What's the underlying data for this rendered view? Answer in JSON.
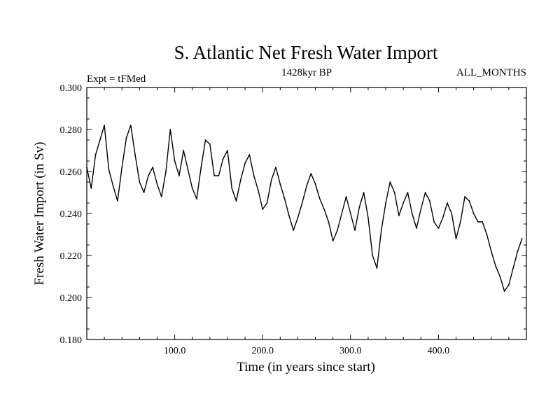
{
  "chart_data": {
    "type": "line",
    "title": "S. Atlantic Net Fresh Water Import",
    "subtitle_left": "Expt = tFMed",
    "subtitle_center": "1428kyr BP",
    "subtitle_right": "ALL_MONTHS",
    "xlabel": "Time (in years since start)",
    "ylabel": "Fresh Water Import (in Sv)",
    "xlim": [
      0,
      500
    ],
    "ylim": [
      0.18,
      0.3
    ],
    "x_ticks": [
      100,
      200,
      300,
      400
    ],
    "x_tick_labels": [
      "100.0",
      "200.0",
      "300.0",
      "400.0"
    ],
    "y_ticks": [
      0.18,
      0.2,
      0.22,
      0.24,
      0.26,
      0.28,
      0.3
    ],
    "y_tick_labels": [
      "0.180",
      "0.200",
      "0.220",
      "0.240",
      "0.260",
      "0.280",
      "0.300"
    ],
    "series": [
      {
        "name": "Fresh Water Import",
        "x_start": 0,
        "x_step": 5,
        "values": [
          0.262,
          0.252,
          0.268,
          0.275,
          0.282,
          0.261,
          0.253,
          0.246,
          0.262,
          0.276,
          0.282,
          0.268,
          0.255,
          0.25,
          0.258,
          0.262,
          0.254,
          0.248,
          0.26,
          0.28,
          0.265,
          0.258,
          0.27,
          0.261,
          0.252,
          0.247,
          0.262,
          0.275,
          0.273,
          0.258,
          0.258,
          0.266,
          0.27,
          0.252,
          0.246,
          0.256,
          0.264,
          0.268,
          0.258,
          0.251,
          0.242,
          0.245,
          0.256,
          0.262,
          0.254,
          0.247,
          0.239,
          0.232,
          0.238,
          0.245,
          0.253,
          0.259,
          0.254,
          0.247,
          0.242,
          0.236,
          0.227,
          0.232,
          0.24,
          0.248,
          0.24,
          0.232,
          0.243,
          0.25,
          0.238,
          0.22,
          0.214,
          0.232,
          0.245,
          0.255,
          0.25,
          0.239,
          0.245,
          0.25,
          0.24,
          0.233,
          0.242,
          0.25,
          0.246,
          0.236,
          0.233,
          0.238,
          0.245,
          0.24,
          0.228,
          0.236,
          0.248,
          0.246,
          0.24,
          0.236,
          0.236,
          0.23,
          0.222,
          0.215,
          0.21,
          0.203,
          0.206,
          0.214,
          0.222,
          0.228
        ]
      }
    ]
  }
}
